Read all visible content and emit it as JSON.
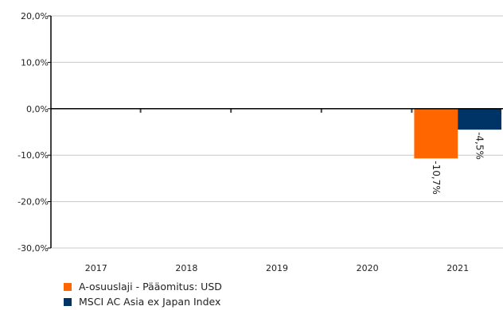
{
  "chart_data": {
    "type": "bar",
    "categories": [
      "2017",
      "2018",
      "2019",
      "2020",
      "2021"
    ],
    "series": [
      {
        "name": "A-osuuslaji - Pääomitus: USD",
        "color": "#ff6600",
        "values": [
          null,
          null,
          null,
          null,
          -10.7
        ],
        "labels": [
          "",
          "",
          "",
          "",
          "-10,7%"
        ]
      },
      {
        "name": "MSCI AC Asia ex Japan Index",
        "color": "#003366",
        "values": [
          null,
          null,
          null,
          null,
          -4.5
        ],
        "labels": [
          "",
          "",
          "",
          "",
          "-4,5%"
        ]
      }
    ],
    "yticks": [
      20,
      10,
      0,
      -10,
      -20,
      -30
    ],
    "ytick_labels": [
      "20,0%",
      "10,0%",
      "0,0%",
      "-10,0%",
      "-20,0%",
      "-30,0%"
    ],
    "ylim": [
      -30,
      20
    ],
    "title": "",
    "xlabel": "",
    "ylabel": "",
    "grid": true,
    "legend_position": "bottom-left"
  }
}
